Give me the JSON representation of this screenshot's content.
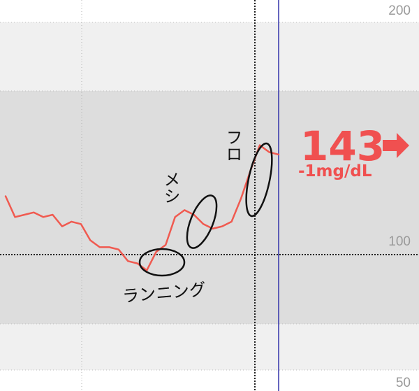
{
  "chart_data": {
    "type": "line",
    "ylim": [
      50,
      200
    ],
    "y_ticks": [
      "200",
      "100",
      "50"
    ],
    "target_range": [
      80,
      150
    ],
    "reference_line": 100,
    "series": [
      {
        "color": "#f05a50",
        "x": [
          0,
          1,
          2,
          3,
          4,
          5,
          6,
          7,
          8,
          9,
          10,
          11,
          12,
          13,
          14,
          15,
          16,
          17,
          18,
          19,
          20,
          21,
          22,
          23,
          24,
          25,
          26,
          27,
          28,
          29
        ],
        "values": [
          125,
          116,
          117,
          118,
          116,
          117,
          112,
          114,
          113,
          106,
          103,
          103,
          102,
          97,
          96,
          93,
          101,
          104,
          116,
          119,
          117,
          113,
          111,
          112,
          114,
          124,
          136,
          147,
          144,
          143
        ]
      }
    ],
    "current_reading": {
      "value": "143",
      "delta": "-1mg/dL",
      "trend": "right-arrow"
    },
    "annotations": [
      "ランニング",
      "メシ",
      "フロ"
    ]
  },
  "colors": {
    "line": "#f05a50",
    "reading": "#f05050",
    "band_outer": "#f0f0f0",
    "band_inner": "#dddddd",
    "cursor": "#3333aa"
  }
}
